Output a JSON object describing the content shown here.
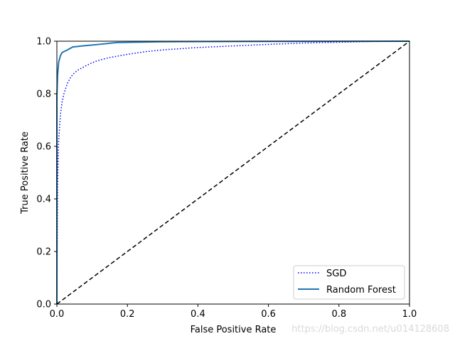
{
  "chart_data": {
    "type": "line",
    "title": "",
    "xlabel": "False Positive Rate",
    "ylabel": "True Positive Rate",
    "xlim": [
      0,
      1
    ],
    "ylim": [
      0,
      1
    ],
    "xticks": [
      "0.0",
      "0.2",
      "0.4",
      "0.6",
      "0.8",
      "1.0"
    ],
    "yticks": [
      "0.0",
      "0.2",
      "0.4",
      "0.6",
      "0.8",
      "1.0"
    ],
    "grid": false,
    "legend_position": "bottom-right",
    "series": [
      {
        "name": "SGD",
        "style": "dotted",
        "color": "#0000ff",
        "x": [
          0,
          0.002,
          0.005,
          0.01,
          0.015,
          0.02,
          0.03,
          0.04,
          0.05,
          0.06,
          0.08,
          0.1,
          0.12,
          0.15,
          0.2,
          0.25,
          0.3,
          0.4,
          0.5,
          0.6,
          0.7,
          0.8,
          0.9,
          1.0
        ],
        "y": [
          0,
          0.45,
          0.62,
          0.72,
          0.77,
          0.8,
          0.84,
          0.865,
          0.88,
          0.89,
          0.905,
          0.918,
          0.928,
          0.938,
          0.95,
          0.96,
          0.967,
          0.976,
          0.982,
          0.988,
          0.993,
          0.996,
          0.999,
          1.0
        ]
      },
      {
        "name": "Random Forest",
        "style": "solid",
        "color": "#1f77b4",
        "x": [
          0,
          0,
          0.002,
          0.005,
          0.01,
          0.015,
          0.03,
          0.045,
          0.08,
          0.12,
          0.17,
          0.3,
          0.5,
          1.0
        ],
        "y": [
          0,
          0.79,
          0.87,
          0.92,
          0.945,
          0.957,
          0.967,
          0.978,
          0.983,
          0.988,
          0.995,
          0.998,
          0.999,
          1.0
        ]
      },
      {
        "name": "diagonal",
        "style": "dashed",
        "color": "#000000",
        "x": [
          0,
          1
        ],
        "y": [
          0,
          1
        ]
      }
    ]
  },
  "watermark": "https://blog.csdn.net/u014128608"
}
